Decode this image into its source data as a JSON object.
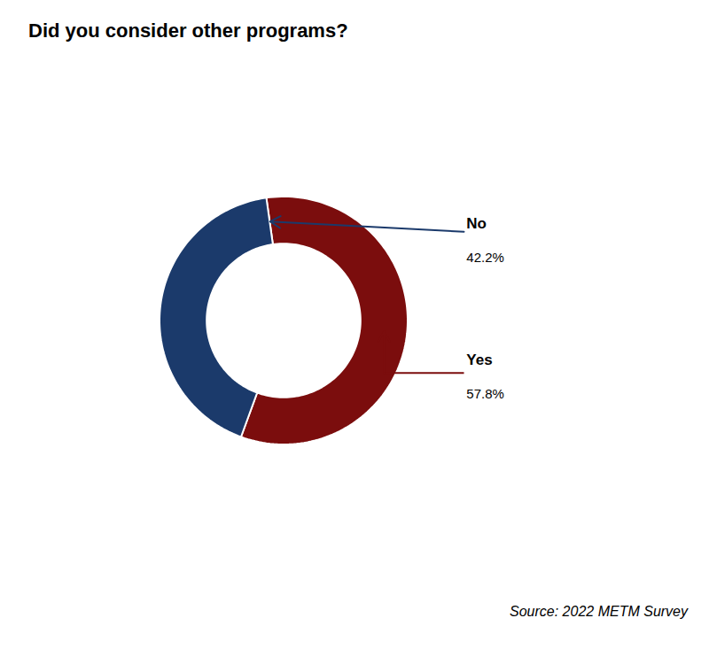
{
  "chart_data": {
    "type": "pie",
    "title": "Did you consider other programs?",
    "categories": [
      "Yes",
      "No"
    ],
    "values": [
      57.8,
      42.2
    ],
    "value_labels": [
      "57.8%",
      "42.2%"
    ],
    "data_labels": true,
    "colors": [
      "#7B0D0D",
      "#1B3A6B"
    ],
    "tick_labels": false,
    "caption": "Source: 2022 METM Survey"
  }
}
